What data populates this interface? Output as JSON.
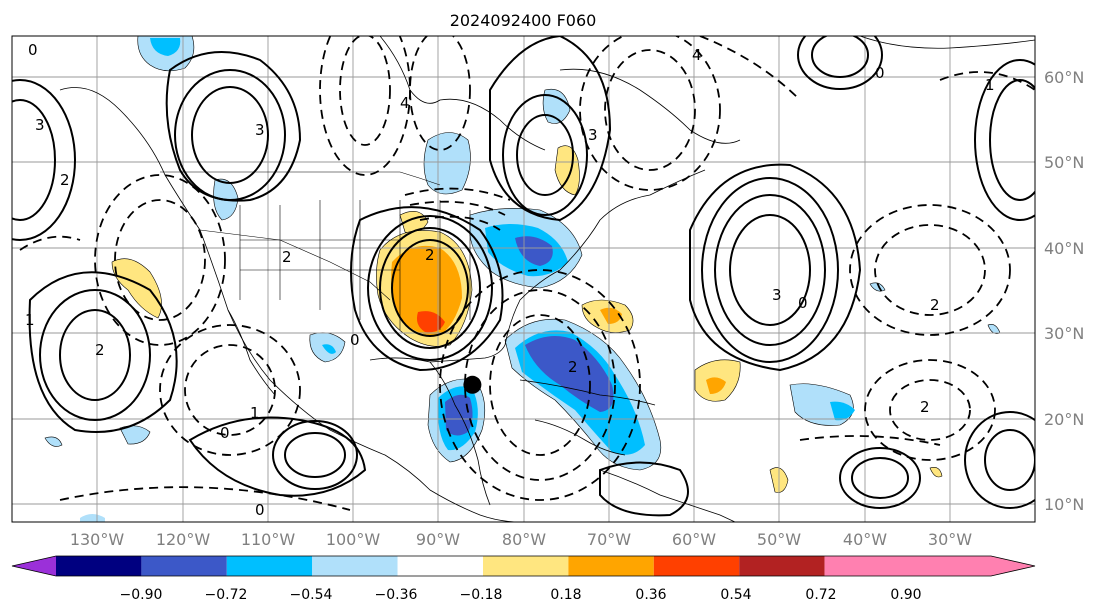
{
  "title": "2024092400 F060",
  "map": {
    "lat_labels": [
      "60°N",
      "50°N",
      "40°N",
      "30°N",
      "20°N",
      "10°N"
    ],
    "lon_labels": [
      "130°W",
      "120°W",
      "110°W",
      "100°W",
      "90°W",
      "80°W",
      "70°W",
      "60°W",
      "50°W",
      "40°W",
      "30°W"
    ],
    "marker": {
      "lon": -86,
      "lat": 24,
      "color": "#000000"
    },
    "contour_labels": [
      "0",
      "2",
      "3",
      "1",
      "2",
      "0",
      "3",
      "2",
      "4",
      "0",
      "2",
      "1",
      "0",
      "3",
      "4",
      "2",
      "0",
      "3",
      "2",
      "1",
      "0",
      "2"
    ]
  },
  "colorbar": {
    "ticks": [
      "−0.90",
      "−0.72",
      "−0.54",
      "−0.36",
      "−0.18",
      "0.18",
      "0.36",
      "0.54",
      "0.72",
      "0.90"
    ],
    "colors": [
      "#9b30d9",
      "#000080",
      "#3c58c8",
      "#00bfff",
      "#b0e0fa",
      "#ffffff",
      "#ffe680",
      "#ffa500",
      "#ff4000",
      "#b22222",
      "#ff80b0"
    ]
  }
}
